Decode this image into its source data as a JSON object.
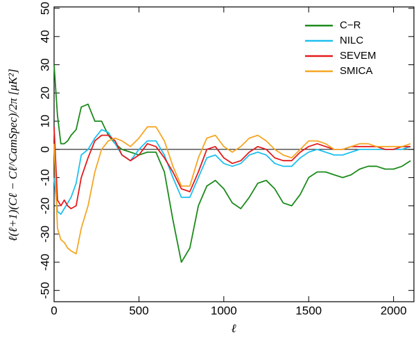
{
  "chart_data": {
    "type": "line",
    "xlabel": "ℓ",
    "ylabel": "ℓ(ℓ+1)(Cℓ − Cℓ^CamSpec)/2π   [μK²]",
    "x": [
      0,
      20,
      40,
      60,
      80,
      100,
      130,
      160,
      200,
      240,
      280,
      320,
      360,
      400,
      450,
      500,
      550,
      600,
      650,
      700,
      750,
      800,
      850,
      900,
      950,
      1000,
      1050,
      1100,
      1150,
      1200,
      1250,
      1300,
      1350,
      1400,
      1450,
      1500,
      1550,
      1600,
      1650,
      1700,
      1750,
      1800,
      1850,
      1900,
      1950,
      2000,
      2050,
      2100
    ],
    "series": [
      {
        "name": "C−R",
        "color": "#1a8a1a",
        "values": [
          30,
          12,
          2,
          2,
          3,
          5,
          7,
          15,
          16,
          10,
          10,
          5,
          2,
          0,
          -1,
          -2,
          -1,
          -1,
          -8,
          -25,
          -40,
          -35,
          -20,
          -13,
          -11,
          -14,
          -19,
          -21,
          -17,
          -12,
          -11,
          -14,
          -19,
          -20,
          -16,
          -10,
          -8,
          -8,
          -9,
          -10,
          -9,
          -7,
          -6,
          -6,
          -7,
          -7,
          -6,
          -4
        ]
      },
      {
        "name": "NILC",
        "color": "#1ec0ef",
        "values": [
          -10,
          -22,
          -23,
          -21,
          -19,
          -17,
          -12,
          -2,
          0,
          4,
          7,
          6,
          2,
          -2,
          -4,
          0,
          3,
          3,
          -2,
          -10,
          -17,
          -17,
          -10,
          -3,
          -2,
          -5,
          -6,
          -5,
          -2,
          -1,
          -2,
          -5,
          -6,
          -6,
          -3,
          -1,
          0,
          -1,
          -2,
          -2,
          -1,
          0,
          0,
          0,
          0,
          0,
          0,
          1
        ]
      },
      {
        "name": "SEVEM",
        "color": "#e31a1c",
        "values": [
          8,
          -18,
          -20,
          -18,
          -20,
          -21,
          -20,
          -10,
          -3,
          3,
          5,
          5,
          3,
          -2,
          -4,
          -2,
          2,
          1,
          -3,
          -8,
          -14,
          -15,
          -8,
          0,
          1,
          -3,
          -5,
          -4,
          -1,
          1,
          0,
          -3,
          -4,
          -4,
          -1,
          1,
          2,
          1,
          0,
          0,
          1,
          1,
          1,
          1,
          0,
          0,
          1,
          1
        ]
      },
      {
        "name": "SMICA",
        "color": "#f5a623",
        "values": [
          2,
          -28,
          -32,
          -33,
          -35,
          -36,
          -37,
          -28,
          -20,
          -8,
          0,
          3,
          4,
          3,
          1,
          4,
          8,
          8,
          3,
          -6,
          -13,
          -13,
          -3,
          4,
          5,
          1,
          -1,
          1,
          4,
          5,
          3,
          0,
          -2,
          -3,
          0,
          3,
          3,
          2,
          0,
          0,
          1,
          2,
          2,
          1,
          1,
          1,
          1,
          2
        ]
      }
    ],
    "xlim": [
      0,
      2120
    ],
    "ylim": [
      -54,
      50.5
    ],
    "xticks": [
      0,
      500,
      1000,
      1500,
      2000
    ],
    "yticks": [
      -50,
      -40,
      -30,
      -20,
      -10,
      0,
      10,
      20,
      30,
      40,
      50
    ],
    "hline": 0,
    "legend": "upper right"
  }
}
